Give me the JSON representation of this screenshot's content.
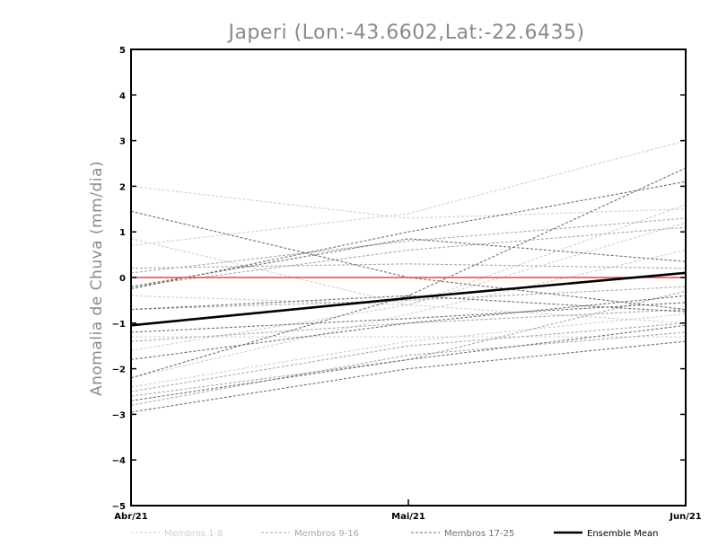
{
  "chart_data": {
    "type": "line",
    "title": "Japeri (Lon:-43.6602,Lat:-22.6435)",
    "ylabel": "Anomalia de Chuva (mm/dia)",
    "xlabel": "",
    "categories": [
      "Abr/21",
      "Mai/21",
      "Jun/21"
    ],
    "ylim": [
      -5,
      5
    ],
    "yticks": [
      -5,
      -4,
      -3,
      -2,
      -1,
      0,
      1,
      2,
      3,
      4,
      5
    ],
    "zero_line_color": "#e8473a",
    "grid": false,
    "legend_position": "bottom",
    "legend": [
      {
        "key": "g1",
        "label": "Membros 1-8",
        "color": "#cfcfcf",
        "dashed": true
      },
      {
        "key": "g2",
        "label": "Membros 9-16",
        "color": "#a8a8a8",
        "dashed": true
      },
      {
        "key": "g3",
        "label": "Membros 17-25",
        "color": "#6e6e6e",
        "dashed": true
      },
      {
        "key": "mean",
        "label": "Ensemble Mean",
        "color": "#000000",
        "dashed": false
      }
    ],
    "series": [
      {
        "group": "g1",
        "values": [
          2.0,
          1.3,
          1.5
        ]
      },
      {
        "group": "g1",
        "values": [
          0.7,
          1.4,
          3.0
        ]
      },
      {
        "group": "g1",
        "values": [
          0.85,
          -0.6,
          -1.0
        ]
      },
      {
        "group": "g1",
        "values": [
          -1.6,
          -0.6,
          1.2
        ]
      },
      {
        "group": "g1",
        "values": [
          -2.4,
          -1.4,
          -0.8
        ]
      },
      {
        "group": "g1",
        "values": [
          -0.4,
          -0.6,
          1.6
        ]
      },
      {
        "group": "g1",
        "values": [
          -2.2,
          -0.8,
          0.6
        ]
      },
      {
        "group": "g1",
        "values": [
          -1.3,
          -1.3,
          -1.3
        ]
      },
      {
        "group": "g2",
        "values": [
          0.1,
          0.8,
          1.3
        ]
      },
      {
        "group": "g2",
        "values": [
          -2.5,
          -1.5,
          -1.0
        ]
      },
      {
        "group": "g2",
        "values": [
          -2.6,
          -1.8,
          -0.3
        ]
      },
      {
        "group": "g2",
        "values": [
          -1.4,
          -1.0,
          -0.7
        ]
      },
      {
        "group": "g2",
        "values": [
          -0.7,
          -0.5,
          -0.2
        ]
      },
      {
        "group": "g2",
        "values": [
          -2.8,
          -1.7,
          -1.2
        ]
      },
      {
        "group": "g2",
        "values": [
          0.2,
          0.3,
          0.2
        ]
      },
      {
        "group": "g2",
        "values": [
          -0.2,
          0.6,
          1.1
        ]
      },
      {
        "group": "g3",
        "values": [
          1.45,
          0.0,
          -0.7
        ]
      },
      {
        "group": "g3",
        "values": [
          -0.25,
          1.0,
          2.1
        ]
      },
      {
        "group": "g3",
        "values": [
          -2.2,
          -0.4,
          2.4
        ]
      },
      {
        "group": "g3",
        "values": [
          -1.8,
          -1.0,
          -0.4
        ]
      },
      {
        "group": "g3",
        "values": [
          -2.95,
          -2.0,
          -1.4
        ]
      },
      {
        "group": "g3",
        "values": [
          -0.7,
          -0.4,
          -0.75
        ]
      },
      {
        "group": "g3",
        "values": [
          -0.2,
          0.85,
          0.35
        ]
      },
      {
        "group": "g3",
        "values": [
          -1.2,
          -0.9,
          -0.55
        ]
      },
      {
        "group": "g3",
        "values": [
          -2.7,
          -1.8,
          -1.05
        ]
      },
      {
        "group": "mean",
        "name": "Ensemble Mean",
        "values": [
          -1.05,
          -0.45,
          0.1
        ]
      }
    ]
  }
}
